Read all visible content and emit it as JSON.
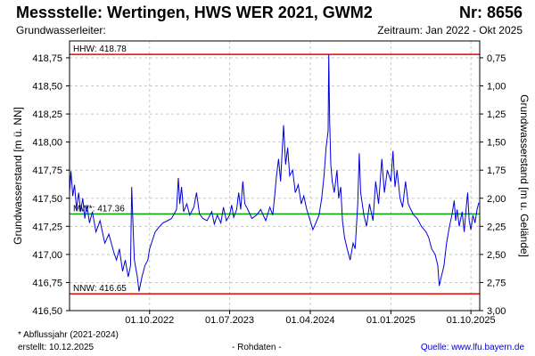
{
  "header": {
    "title": "Messstelle: Wertingen, HWS WER 2021, GWM2",
    "nr": "Nr: 8656",
    "subtitle_left": "Grundwasserleiter:",
    "subtitle_right": "Zeitraum: Jan 2022 - Okt 2025"
  },
  "footer": {
    "footnote": "* Abflussjahr (2021-2024)",
    "created": "erstellt:  10.12.2025",
    "center": "- Rohdaten -",
    "source": "Quelle:  www.lfu.bayern.de"
  },
  "colors": {
    "series": "#0000dd",
    "hhw": "#ee0000",
    "nnw": "#ee0000",
    "mw": "#00aa00",
    "grid": "#c8c8c8"
  },
  "chart_data": {
    "type": "line",
    "ylabel": "Grundwasserstand [m ü. NN]",
    "ylabel_right": "Grundwasserstand [m u. Gelände]",
    "ylim": [
      416.5,
      418.9
    ],
    "yticks": [
      "418,75",
      "418,50",
      "418,25",
      "418,00",
      "417,75",
      "417,50",
      "417,25",
      "417,00",
      "416,75",
      "416,50"
    ],
    "yticks_right": [
      "0,75",
      "1,00",
      "1,25",
      "1,50",
      "1,75",
      "2,00",
      "2,25",
      "2,50",
      "2,75",
      "3,00"
    ],
    "xlim": [
      "2022-01-01",
      "2025-10-31"
    ],
    "xticks": [
      {
        "date": "2022-10-01",
        "label": "01.10.2022"
      },
      {
        "date": "2023-07-01",
        "label": "01.07.2023"
      },
      {
        "date": "2024-04-01",
        "label": "01.04.2024"
      },
      {
        "date": "2025-01-01",
        "label": "01.01.2025"
      },
      {
        "date": "2025-10-01",
        "label": "01.10.2025"
      }
    ],
    "grid": true,
    "reference_lines": [
      {
        "name": "HHW",
        "label": "HHW: 418.78",
        "value": 418.78
      },
      {
        "name": "MW",
        "label": "MW*: 417.36",
        "value": 417.36
      },
      {
        "name": "NNW",
        "label": "NNW: 416.65",
        "value": 416.65
      }
    ],
    "series": [
      {
        "points": [
          [
            "2022-01-01",
            417.55
          ],
          [
            "2022-01-06",
            417.74
          ],
          [
            "2022-01-12",
            417.52
          ],
          [
            "2022-01-18",
            417.62
          ],
          [
            "2022-01-25",
            417.4
          ],
          [
            "2022-02-01",
            417.55
          ],
          [
            "2022-02-08",
            417.38
          ],
          [
            "2022-02-15",
            417.5
          ],
          [
            "2022-02-22",
            417.32
          ],
          [
            "2022-03-01",
            417.44
          ],
          [
            "2022-03-10",
            417.28
          ],
          [
            "2022-03-20",
            417.38
          ],
          [
            "2022-04-01",
            417.2
          ],
          [
            "2022-04-15",
            417.3
          ],
          [
            "2022-05-01",
            417.1
          ],
          [
            "2022-05-15",
            417.18
          ],
          [
            "2022-06-01",
            417.02
          ],
          [
            "2022-06-10",
            416.95
          ],
          [
            "2022-06-20",
            417.05
          ],
          [
            "2022-07-01",
            416.85
          ],
          [
            "2022-07-10",
            416.95
          ],
          [
            "2022-07-20",
            416.8
          ],
          [
            "2022-07-28",
            416.9
          ],
          [
            "2022-08-01",
            417.6
          ],
          [
            "2022-08-05",
            417.3
          ],
          [
            "2022-08-10",
            416.95
          ],
          [
            "2022-08-20",
            416.8
          ],
          [
            "2022-08-26",
            416.67
          ],
          [
            "2022-09-05",
            416.8
          ],
          [
            "2022-09-15",
            416.9
          ],
          [
            "2022-09-25",
            416.95
          ],
          [
            "2022-10-01",
            417.05
          ],
          [
            "2022-10-10",
            417.12
          ],
          [
            "2022-10-20",
            417.2
          ],
          [
            "2022-11-01",
            417.24
          ],
          [
            "2022-11-15",
            417.28
          ],
          [
            "2022-12-01",
            417.3
          ],
          [
            "2022-12-15",
            417.32
          ],
          [
            "2023-01-01",
            417.4
          ],
          [
            "2023-01-07",
            417.68
          ],
          [
            "2023-01-12",
            417.45
          ],
          [
            "2023-01-18",
            417.6
          ],
          [
            "2023-01-25",
            417.38
          ],
          [
            "2023-02-05",
            417.45
          ],
          [
            "2023-02-15",
            417.35
          ],
          [
            "2023-03-01",
            417.42
          ],
          [
            "2023-03-10",
            417.55
          ],
          [
            "2023-03-20",
            417.36
          ],
          [
            "2023-04-01",
            417.32
          ],
          [
            "2023-04-15",
            417.3
          ],
          [
            "2023-05-01",
            417.38
          ],
          [
            "2023-05-10",
            417.27
          ],
          [
            "2023-05-20",
            417.35
          ],
          [
            "2023-06-01",
            417.28
          ],
          [
            "2023-06-10",
            417.42
          ],
          [
            "2023-06-20",
            417.3
          ],
          [
            "2023-07-01",
            417.35
          ],
          [
            "2023-07-08",
            417.44
          ],
          [
            "2023-07-15",
            417.33
          ],
          [
            "2023-07-25",
            417.4
          ],
          [
            "2023-08-01",
            417.55
          ],
          [
            "2023-08-08",
            417.4
          ],
          [
            "2023-08-15",
            417.65
          ],
          [
            "2023-08-22",
            417.45
          ],
          [
            "2023-09-01",
            417.4
          ],
          [
            "2023-09-15",
            417.32
          ],
          [
            "2023-10-01",
            417.35
          ],
          [
            "2023-10-15",
            417.4
          ],
          [
            "2023-11-01",
            417.3
          ],
          [
            "2023-11-15",
            417.42
          ],
          [
            "2023-11-25",
            417.35
          ],
          [
            "2023-12-01",
            417.5
          ],
          [
            "2023-12-08",
            417.7
          ],
          [
            "2023-12-15",
            417.85
          ],
          [
            "2023-12-22",
            417.65
          ],
          [
            "2024-01-01",
            418.15
          ],
          [
            "2024-01-08",
            417.8
          ],
          [
            "2024-01-15",
            417.95
          ],
          [
            "2024-01-22",
            417.7
          ],
          [
            "2024-02-01",
            417.75
          ],
          [
            "2024-02-10",
            417.55
          ],
          [
            "2024-02-20",
            417.62
          ],
          [
            "2024-03-01",
            417.45
          ],
          [
            "2024-03-10",
            417.52
          ],
          [
            "2024-03-20",
            417.4
          ],
          [
            "2024-04-01",
            417.3
          ],
          [
            "2024-04-10",
            417.22
          ],
          [
            "2024-04-20",
            417.28
          ],
          [
            "2024-05-01",
            417.35
          ],
          [
            "2024-05-10",
            417.5
          ],
          [
            "2024-05-18",
            417.7
          ],
          [
            "2024-05-25",
            417.95
          ],
          [
            "2024-06-01",
            418.1
          ],
          [
            "2024-06-03",
            418.78
          ],
          [
            "2024-06-06",
            418.2
          ],
          [
            "2024-06-10",
            417.8
          ],
          [
            "2024-06-15",
            417.65
          ],
          [
            "2024-06-22",
            417.55
          ],
          [
            "2024-07-01",
            417.75
          ],
          [
            "2024-07-07",
            417.5
          ],
          [
            "2024-07-14",
            417.6
          ],
          [
            "2024-07-20",
            417.3
          ],
          [
            "2024-07-27",
            417.15
          ],
          [
            "2024-08-05",
            417.05
          ],
          [
            "2024-08-15",
            416.95
          ],
          [
            "2024-08-25",
            417.1
          ],
          [
            "2024-09-01",
            417.05
          ],
          [
            "2024-09-10",
            417.45
          ],
          [
            "2024-09-15",
            417.9
          ],
          [
            "2024-09-20",
            417.55
          ],
          [
            "2024-10-01",
            417.35
          ],
          [
            "2024-10-10",
            417.25
          ],
          [
            "2024-10-20",
            417.45
          ],
          [
            "2024-11-01",
            417.3
          ],
          [
            "2024-11-10",
            417.65
          ],
          [
            "2024-11-20",
            417.45
          ],
          [
            "2024-12-01",
            417.85
          ],
          [
            "2024-12-10",
            417.55
          ],
          [
            "2024-12-20",
            417.75
          ],
          [
            "2025-01-01",
            417.65
          ],
          [
            "2025-01-08",
            417.92
          ],
          [
            "2025-01-15",
            417.6
          ],
          [
            "2025-01-22",
            417.75
          ],
          [
            "2025-02-01",
            417.5
          ],
          [
            "2025-02-10",
            417.42
          ],
          [
            "2025-02-20",
            417.65
          ],
          [
            "2025-03-01",
            417.45
          ],
          [
            "2025-03-10",
            417.4
          ],
          [
            "2025-03-20",
            417.35
          ],
          [
            "2025-04-01",
            417.32
          ],
          [
            "2025-04-15",
            417.25
          ],
          [
            "2025-05-01",
            417.2
          ],
          [
            "2025-05-10",
            417.15
          ],
          [
            "2025-05-20",
            417.05
          ],
          [
            "2025-06-01",
            417.0
          ],
          [
            "2025-06-10",
            416.9
          ],
          [
            "2025-06-15",
            416.72
          ],
          [
            "2025-06-20",
            416.78
          ],
          [
            "2025-07-01",
            416.9
          ],
          [
            "2025-07-10",
            417.1
          ],
          [
            "2025-07-20",
            417.25
          ],
          [
            "2025-07-28",
            417.35
          ],
          [
            "2025-08-05",
            417.48
          ],
          [
            "2025-08-10",
            417.3
          ],
          [
            "2025-08-15",
            417.4
          ],
          [
            "2025-08-22",
            417.25
          ],
          [
            "2025-09-01",
            417.38
          ],
          [
            "2025-09-08",
            417.2
          ],
          [
            "2025-09-15",
            417.42
          ],
          [
            "2025-09-20",
            417.55
          ],
          [
            "2025-09-25",
            417.3
          ],
          [
            "2025-10-01",
            417.22
          ],
          [
            "2025-10-08",
            417.35
          ],
          [
            "2025-10-15",
            417.28
          ],
          [
            "2025-10-22",
            417.4
          ],
          [
            "2025-10-28",
            417.46
          ]
        ]
      }
    ]
  }
}
